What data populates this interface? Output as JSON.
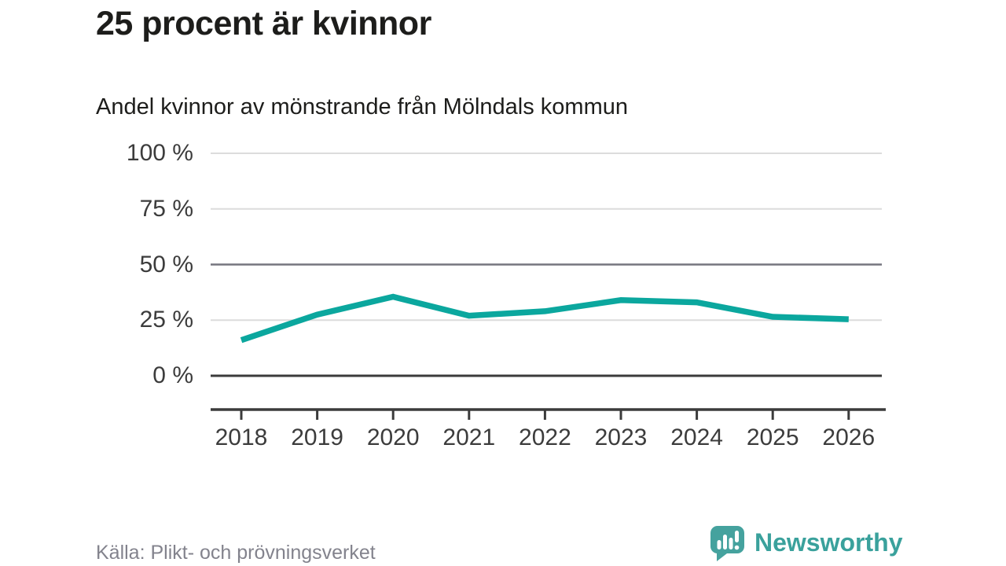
{
  "header": {
    "title": "25 procent är kvinnor",
    "subtitle": "Andel kvinnor av mönstrande från Mölndals kommun"
  },
  "chart_data": {
    "type": "line",
    "title": "25 procent är kvinnor",
    "subtitle": "Andel kvinnor av mönstrande från Mölndals kommun",
    "x": [
      2018,
      2019,
      2020,
      2021,
      2022,
      2023,
      2024,
      2025,
      2026
    ],
    "series": [
      {
        "name": "Andel kvinnor av mönstrande",
        "color": "#0ba79e",
        "values": [
          16,
          27.5,
          35.5,
          27,
          29,
          34,
          33,
          26.5,
          25.4
        ]
      }
    ],
    "ylim": [
      0,
      100
    ],
    "yticks": [
      {
        "value": 0,
        "label": "0 %"
      },
      {
        "value": 25,
        "label": "25 %"
      },
      {
        "value": 50,
        "label": "50 %"
      },
      {
        "value": 75,
        "label": "75 %"
      },
      {
        "value": 100,
        "label": "100 %"
      }
    ],
    "xlabels": [
      "2018",
      "2019",
      "2020",
      "2021",
      "2022",
      "2023",
      "2024",
      "2025",
      "2026"
    ],
    "grid": "horizontal",
    "legend": "none"
  },
  "footer": {
    "source": "Källa: Plikt- och prövningsverket",
    "brand": "Newsworthy",
    "logo_icon": "newsworthy-speech-bubble-chart-icon"
  },
  "colors": {
    "line": "#0ba79e",
    "grid_light": "#dcdcdc",
    "grid_mid": "#75757f",
    "grid_zero": "#3b3b3b",
    "axis": "#3b3b3b",
    "text_dark": "#1d1d1b",
    "axis_text": "#3c3c3c",
    "source_text": "#83838d",
    "brand_teal": "#3aa19c",
    "logo_fill": "#45a29e"
  }
}
